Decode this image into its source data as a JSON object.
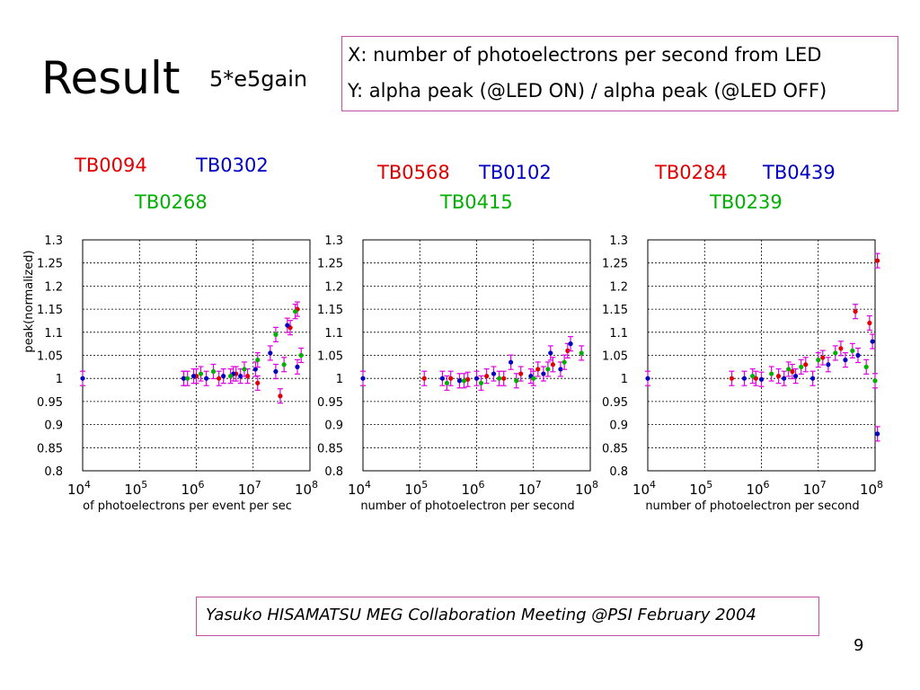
{
  "slide": {
    "title": "Result",
    "subtitle": "5*e5gain",
    "xy_line1": "X: number of photoelectrons per second from LED",
    "xy_line2": "Y: alpha peak (@LED ON) / alpha peak (@LED OFF)",
    "footer": "Yasuko HISAMATSU MEG Collaboration Meeting @PSI  February 2004",
    "page_number": "9"
  },
  "colors": {
    "red": "#e00000",
    "blue": "#0000c0",
    "green": "#00b000",
    "magenta": "#e000e0"
  },
  "chart_data": [
    {
      "type": "scatter",
      "xscale": "log",
      "labels": {
        "red": "TB0094",
        "blue": "TB0302",
        "green": "TB0268"
      },
      "xlabel": "of photoelectrons per event per sec",
      "ylabel": "peak(normalized)",
      "xlim": [
        10000,
        100000000
      ],
      "ylim": [
        0.8,
        1.3
      ],
      "xticks": [
        "10^4",
        "10^5",
        "10^6",
        "10^7",
        "10^8"
      ],
      "yticks": [
        "0.8",
        "0.85",
        "0.9",
        "0.95",
        "1",
        "1.05",
        "1.1",
        "1.15",
        "1.2",
        "1.25",
        "1.3"
      ],
      "grid": true,
      "series": [
        {
          "color": "red",
          "points": [
            [
              600000,
              1.0
            ],
            [
              1000000,
              1.005
            ],
            [
              2500000,
              1.0
            ],
            [
              5000000,
              1.01
            ],
            [
              8000000,
              1.005
            ],
            [
              12000000,
              0.99
            ],
            [
              30000000,
              0.962
            ],
            [
              45000000,
              1.11
            ],
            [
              60000000,
              1.15
            ]
          ]
        },
        {
          "color": "blue",
          "points": [
            [
              10000,
              1.0
            ],
            [
              600000,
              1.0
            ],
            [
              900000,
              1.005
            ],
            [
              1500000,
              1.0
            ],
            [
              3000000,
              1.005
            ],
            [
              4500000,
              1.01
            ],
            [
              6000000,
              1.005
            ],
            [
              11000000,
              1.02
            ],
            [
              20000000,
              1.055
            ],
            [
              25000000,
              1.015
            ],
            [
              40000000,
              1.115
            ],
            [
              60000000,
              1.025
            ]
          ]
        },
        {
          "color": "green",
          "points": [
            [
              700000,
              1.0
            ],
            [
              1200000,
              1.01
            ],
            [
              2000000,
              1.015
            ],
            [
              4000000,
              1.005
            ],
            [
              7000000,
              1.02
            ],
            [
              12000000,
              1.04
            ],
            [
              25000000,
              1.095
            ],
            [
              35000000,
              1.03
            ],
            [
              55000000,
              1.145
            ],
            [
              70000000,
              1.05
            ]
          ]
        }
      ]
    },
    {
      "type": "scatter",
      "xscale": "log",
      "labels": {
        "red": "TB0568",
        "blue": "TB0102",
        "green": "TB0415"
      },
      "xlabel": "number of photoelectron per second",
      "xlim": [
        10000,
        100000000
      ],
      "ylim": [
        0.8,
        1.3
      ],
      "xticks": [
        "10^4",
        "10^5",
        "10^6",
        "10^7",
        "10^8"
      ],
      "yticks": [
        "0.8",
        "0.85",
        "0.9",
        "0.95",
        "1",
        "1.05",
        "1.1",
        "1.15",
        "1.2",
        "1.25",
        "1.3"
      ],
      "grid": true,
      "series": [
        {
          "color": "red",
          "points": [
            [
              120000,
              1.0
            ],
            [
              350000,
              1.0
            ],
            [
              700000,
              0.998
            ],
            [
              1500000,
              1.005
            ],
            [
              3000000,
              1.0
            ],
            [
              6000000,
              1.01
            ],
            [
              12000000,
              1.02
            ],
            [
              22000000,
              1.03
            ],
            [
              40000000,
              1.06
            ]
          ]
        },
        {
          "color": "blue",
          "points": [
            [
              10000,
              1.0
            ],
            [
              250000,
              1.0
            ],
            [
              500000,
              0.995
            ],
            [
              1000000,
              1.0
            ],
            [
              2000000,
              1.01
            ],
            [
              4000000,
              1.035
            ],
            [
              9000000,
              1.005
            ],
            [
              15000000,
              1.01
            ],
            [
              20000000,
              1.055
            ],
            [
              30000000,
              1.02
            ],
            [
              45000000,
              1.075
            ]
          ]
        },
        {
          "color": "green",
          "points": [
            [
              300000,
              0.99
            ],
            [
              600000,
              0.995
            ],
            [
              1200000,
              0.99
            ],
            [
              2500000,
              1.0
            ],
            [
              5000000,
              0.995
            ],
            [
              10000000,
              1.0
            ],
            [
              18000000,
              1.02
            ],
            [
              35000000,
              1.035
            ],
            [
              70000000,
              1.055
            ]
          ]
        }
      ]
    },
    {
      "type": "scatter",
      "xscale": "log",
      "labels": {
        "red": "TB0284",
        "blue": "TB0439",
        "green": "TB0239"
      },
      "xlabel": "number of photoelectron per second",
      "xlim": [
        10000,
        100000000
      ],
      "ylim": [
        0.8,
        1.3
      ],
      "xticks": [
        "10^4",
        "10^5",
        "10^6",
        "10^7",
        "10^8"
      ],
      "yticks": [
        "0.8",
        "0.85",
        "0.9",
        "0.95",
        "1",
        "1.05",
        "1.1",
        "1.15",
        "1.2",
        "1.25",
        "1.3"
      ],
      "grid": true,
      "series": [
        {
          "color": "red",
          "points": [
            [
              300000,
              1.0
            ],
            [
              800000,
              1.0
            ],
            [
              2000000,
              1.005
            ],
            [
              3500000,
              1.015
            ],
            [
              6000000,
              1.03
            ],
            [
              12000000,
              1.045
            ],
            [
              25000000,
              1.065
            ],
            [
              45000000,
              1.145
            ],
            [
              80000000,
              1.12
            ],
            [
              110000000,
              1.255
            ]
          ]
        },
        {
          "color": "blue",
          "points": [
            [
              10000,
              1.0
            ],
            [
              500000,
              1.0
            ],
            [
              1000000,
              0.998
            ],
            [
              2500000,
              1.0
            ],
            [
              4000000,
              1.005
            ],
            [
              8000000,
              1.0
            ],
            [
              15000000,
              1.03
            ],
            [
              30000000,
              1.04
            ],
            [
              50000000,
              1.05
            ],
            [
              90000000,
              1.08
            ],
            [
              110000000,
              0.88
            ]
          ]
        },
        {
          "color": "green",
          "points": [
            [
              700000,
              1.005
            ],
            [
              1500000,
              1.01
            ],
            [
              3000000,
              1.02
            ],
            [
              5000000,
              1.025
            ],
            [
              10000000,
              1.04
            ],
            [
              20000000,
              1.055
            ],
            [
              40000000,
              1.06
            ],
            [
              70000000,
              1.025
            ],
            [
              100000000,
              0.995
            ]
          ]
        }
      ]
    }
  ]
}
